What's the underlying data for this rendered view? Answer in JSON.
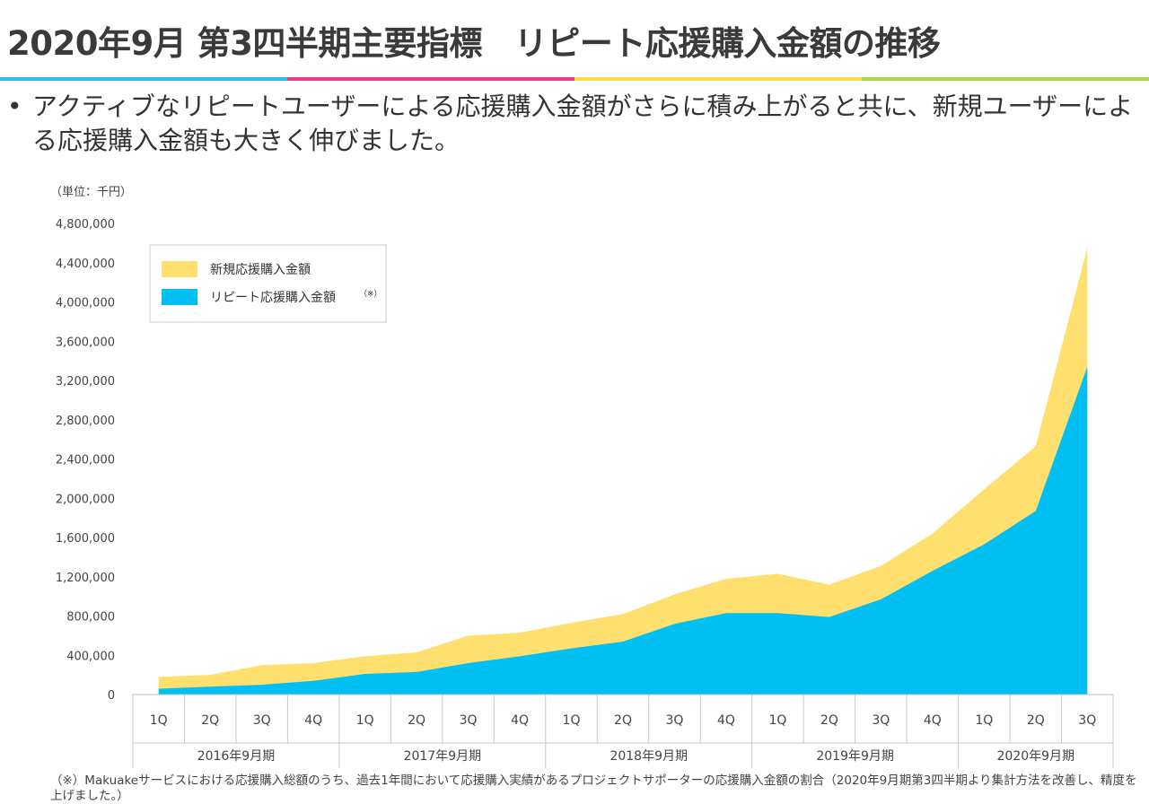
{
  "header": {
    "title": "2020年9月 第3四半期主要指標",
    "subtitle": "リピート応援購入金額の推移",
    "stripe_colors": [
      "#35b9e9",
      "#e83e8c",
      "#f7dc4a",
      "#a7d94a"
    ]
  },
  "bullet": {
    "symbol": "•",
    "text": "アクティブなリピートユーザーによる応援購入金額がさらに積み上がると共に、新規ユーザーによる応援購入金額も大きく伸びました。"
  },
  "chart_data": {
    "type": "area",
    "stacked": true,
    "unit_label": "（単位：千円）",
    "categories": [
      "1Q",
      "2Q",
      "3Q",
      "4Q",
      "1Q",
      "2Q",
      "3Q",
      "4Q",
      "1Q",
      "2Q",
      "3Q",
      "4Q",
      "1Q",
      "2Q",
      "3Q",
      "4Q",
      "1Q",
      "2Q",
      "3Q"
    ],
    "groups": [
      {
        "label": "2016年9月期",
        "count": 4
      },
      {
        "label": "2017年9月期",
        "count": 4
      },
      {
        "label": "2018年9月期",
        "count": 4
      },
      {
        "label": "2019年9月期",
        "count": 4
      },
      {
        "label": "2020年9月期",
        "count": 3
      }
    ],
    "series": [
      {
        "name": "リピート応援購入金額",
        "superscript": "（※）",
        "color": "#00c0f3",
        "values": [
          60000,
          80000,
          100000,
          140000,
          210000,
          230000,
          320000,
          390000,
          470000,
          540000,
          720000,
          830000,
          830000,
          790000,
          970000,
          1260000,
          1530000,
          1870000,
          3340000
        ]
      },
      {
        "name": "新規応援購入金額",
        "color": "#ffdf6e",
        "values": [
          120000,
          120000,
          200000,
          180000,
          180000,
          200000,
          280000,
          240000,
          260000,
          280000,
          300000,
          350000,
          400000,
          330000,
          340000,
          380000,
          560000,
          660000,
          1210000
        ]
      }
    ],
    "yticks": [
      "0",
      "400,000",
      "800,000",
      "1,200,000",
      "1,600,000",
      "2,000,000",
      "2,400,000",
      "2,800,000",
      "3,200,000",
      "3,600,000",
      "4,000,000",
      "4,400,000",
      "4,800,000"
    ],
    "ylim": [
      0,
      4800000
    ],
    "legend_position": "top-left"
  },
  "footnote": "（※）Makuakeサービスにおける応援購入総額のうち、過去1年間において応援購入実績があるプロジェクトサポーターの応援購入金額の割合（2020年9月期第3四半期より集計方法を改善し、精度を上げました。）"
}
